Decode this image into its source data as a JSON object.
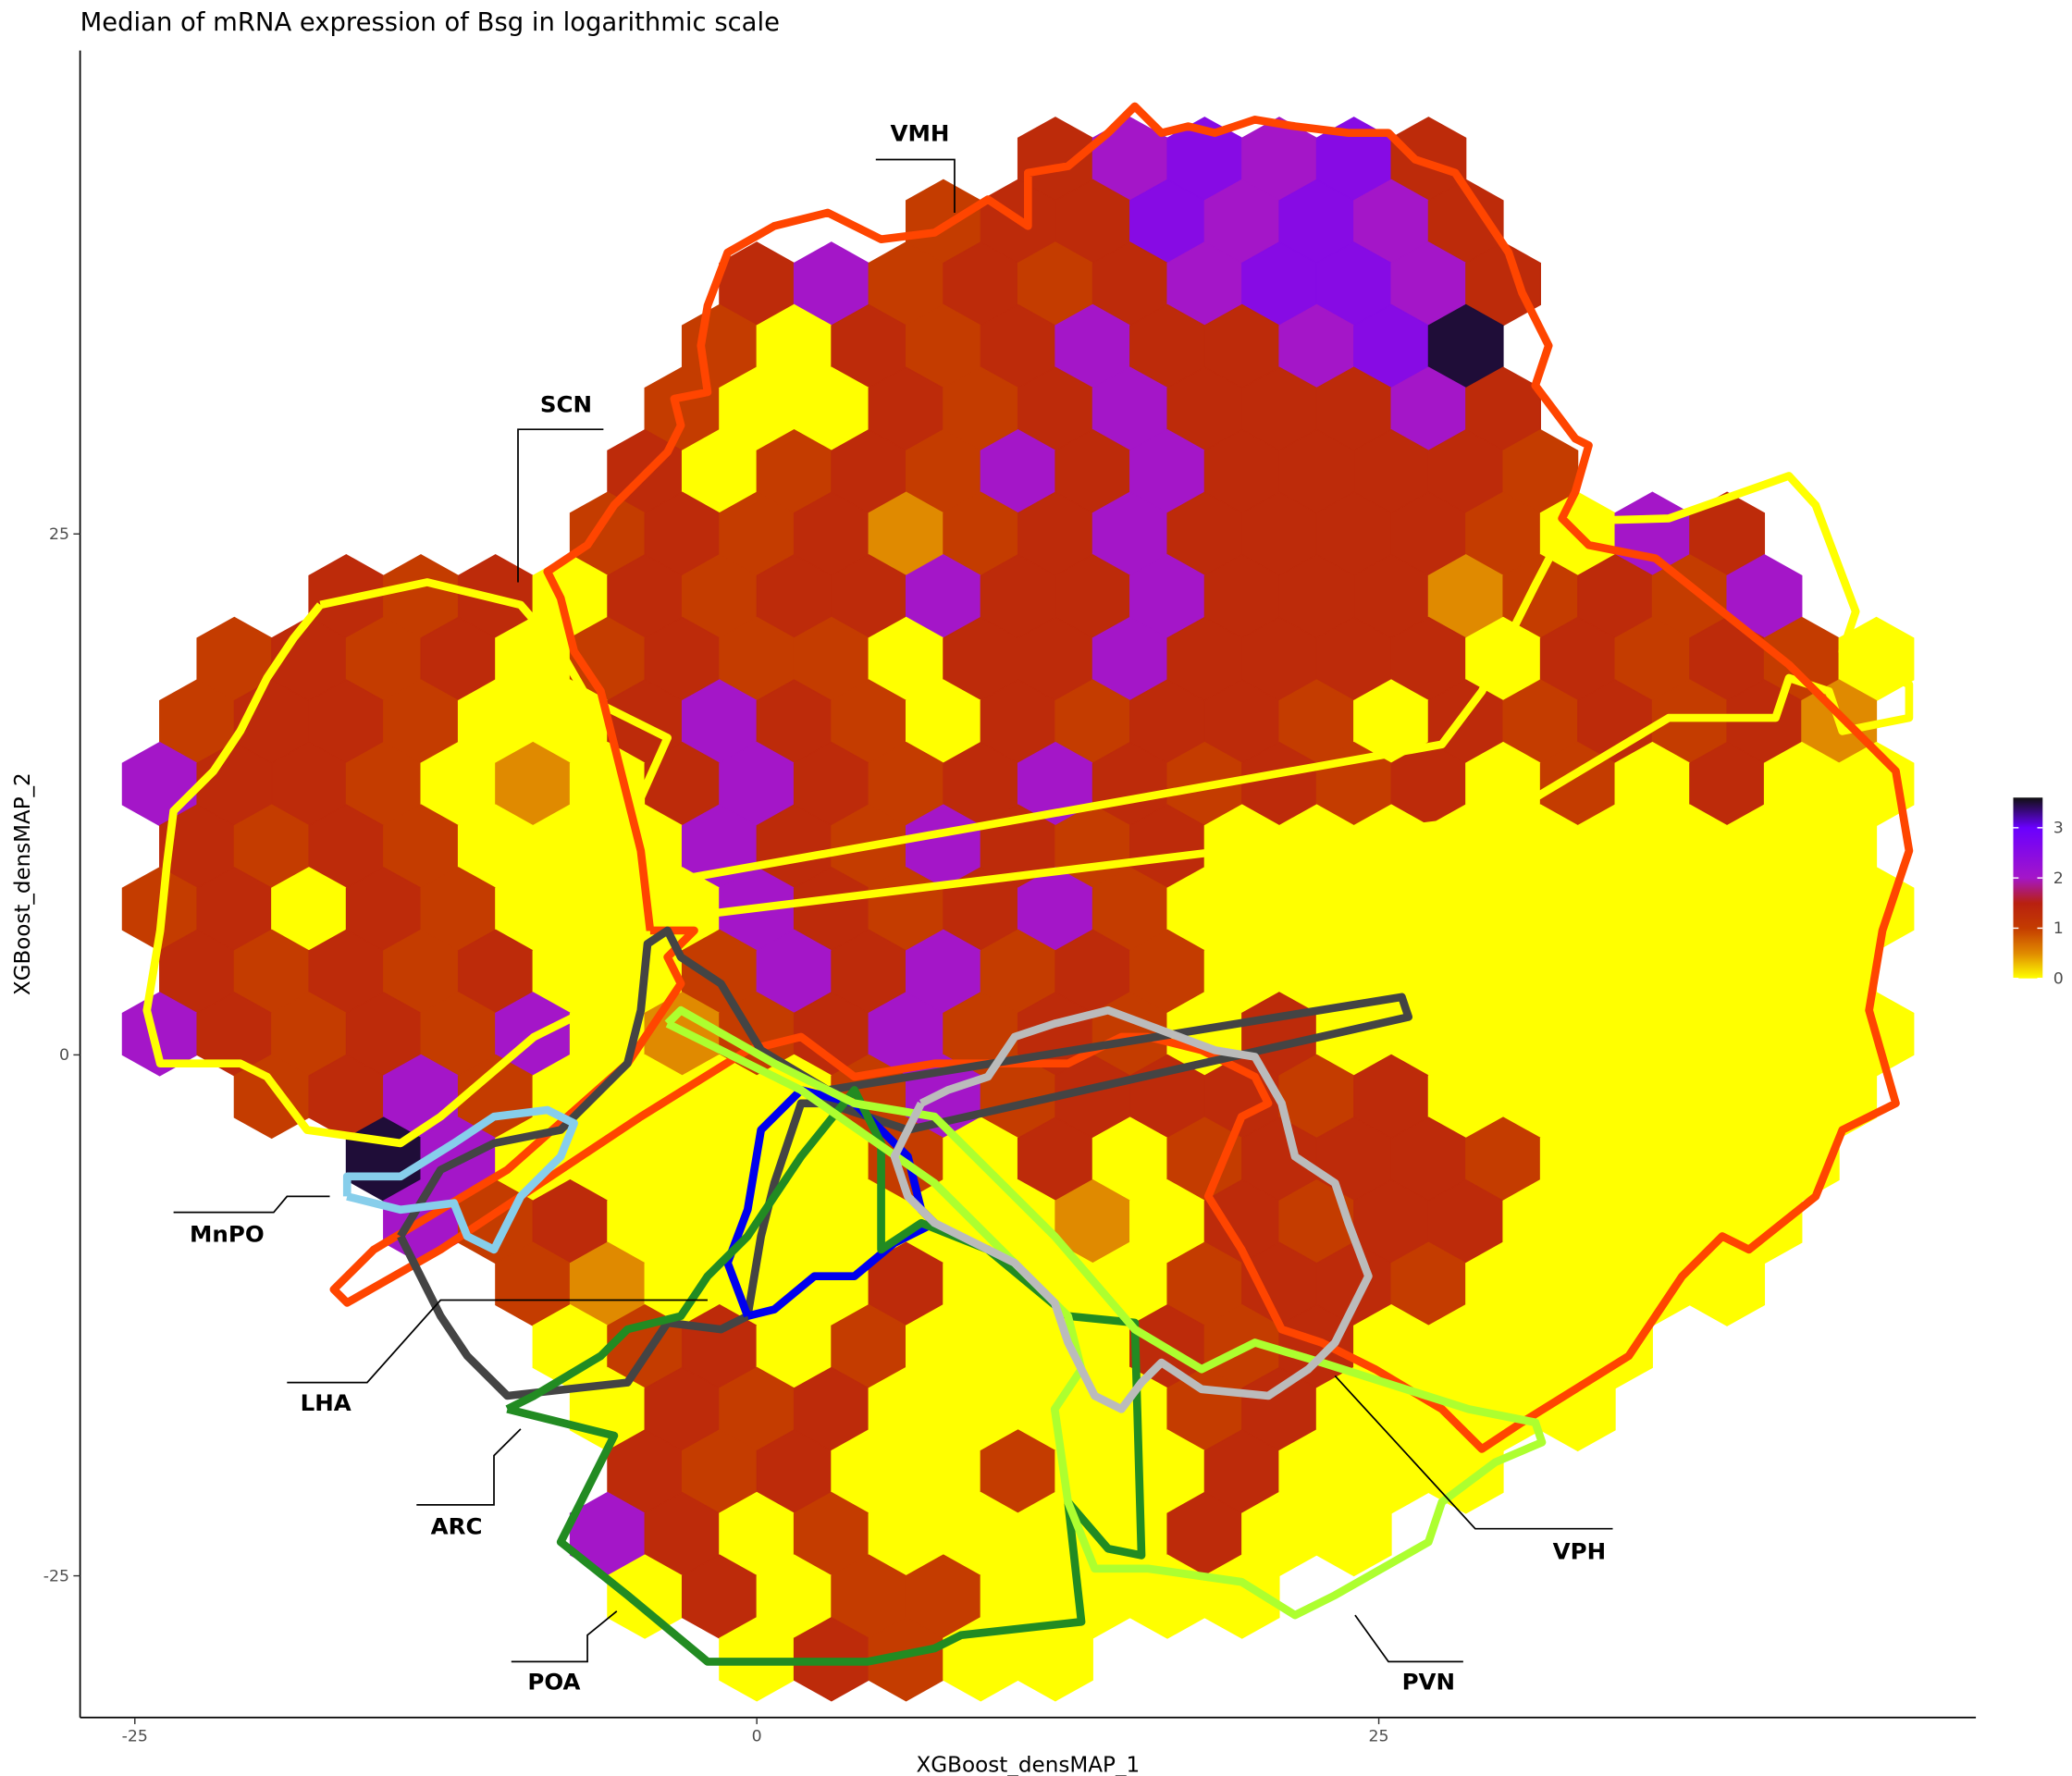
{
  "chart_data": {
    "type": "hexbin",
    "title": "Median of mRNA expression of Bsg in logarithmic scale",
    "xlabel": "XGBoost_densMAP_1",
    "ylabel": "XGBoost_densMAP_2",
    "xlim": [
      -27.2,
      49
    ],
    "ylim": [
      -31.8,
      48.2
    ],
    "xticks": [
      -25,
      0,
      25
    ],
    "yticks": [
      -25,
      0,
      25
    ],
    "colorbar": {
      "lim": [
        0,
        3.6
      ],
      "ticks": [
        0,
        1,
        2,
        3
      ],
      "stops": [
        [
          0,
          "#ffff00"
        ],
        [
          0.5,
          "#e08a00"
        ],
        [
          1,
          "#c43c00"
        ],
        [
          1.5,
          "#b82010"
        ],
        [
          2,
          "#a416c8"
        ],
        [
          3,
          "#6a00ff"
        ],
        [
          3.6,
          "#101010"
        ]
      ]
    },
    "annotations": [
      "VMH",
      "SCN",
      "MnPO",
      "LHA",
      "ARC",
      "POA",
      "VPH",
      "PVN"
    ],
    "rows": [
      {
        "y": 43,
        "x": [
          12,
          15,
          18,
          21,
          24,
          27
        ],
        "values": [
          1.3,
          2,
          2.5,
          2,
          2.5,
          1.3
        ]
      },
      {
        "y": 40,
        "x": [
          7.5,
          10.5,
          13.5,
          16.5,
          19.5,
          22.5,
          25.5,
          28.5
        ],
        "values": [
          1,
          1.3,
          1.3,
          2.5,
          2,
          2.5,
          2,
          1.3
        ]
      },
      {
        "y": 37,
        "x": [
          0,
          3,
          6,
          9,
          12,
          15,
          18,
          21,
          24,
          27,
          30
        ],
        "values": [
          1.3,
          2,
          1,
          1.3,
          1,
          1.3,
          2,
          2.5,
          2.5,
          2,
          1.3
        ]
      },
      {
        "y": 34,
        "x": [
          -1.5,
          1.5,
          4.5,
          7.5,
          10.5,
          13.5,
          16.5,
          19.5,
          22.5,
          25.5,
          28.5
        ],
        "values": [
          1,
          0,
          1.3,
          1,
          1.3,
          2,
          1.3,
          1.3,
          2,
          2.5,
          3.5
        ]
      },
      {
        "y": 31,
        "x": [
          -3,
          0,
          3,
          6,
          9,
          12,
          15,
          18,
          21,
          24,
          27,
          30
        ],
        "values": [
          1,
          0,
          0,
          1.3,
          1,
          1.3,
          2,
          1.3,
          1.3,
          1.3,
          2,
          1.3
        ]
      },
      {
        "y": 28,
        "x": [
          -4.5,
          -1.5,
          1.5,
          4.5,
          7.5,
          10.5,
          13.5,
          16.5,
          19.5,
          22.5,
          25.5,
          28.5,
          31.5
        ],
        "values": [
          1.3,
          0,
          1,
          1.3,
          1,
          2,
          1.3,
          2,
          1.3,
          1.3,
          1.3,
          1.3,
          1
        ]
      },
      {
        "y": 25,
        "x": [
          -6,
          -3,
          0,
          3,
          6,
          9,
          12,
          15,
          18,
          21,
          24,
          27,
          30,
          33,
          36,
          39
        ],
        "values": [
          1,
          1.3,
          1,
          1.3,
          0.5,
          1,
          1.3,
          2,
          1.3,
          1.3,
          1.3,
          1.3,
          1,
          0,
          2,
          1.3
        ]
      },
      {
        "y": 22,
        "x": [
          -16.5,
          -13.5,
          -10.5,
          -7.5,
          -4.5,
          -1.5,
          1.5,
          4.5,
          7.5,
          10.5,
          13.5,
          16.5,
          19.5,
          22.5,
          25.5,
          28.5,
          31.5,
          34.5,
          37.5,
          40.5
        ],
        "values": [
          1.3,
          1,
          1.3,
          0,
          1.3,
          1,
          1.3,
          1.3,
          2,
          1.3,
          1.3,
          2,
          1.3,
          1.3,
          1.3,
          0.5,
          1,
          1.3,
          1,
          2
        ]
      },
      {
        "y": 19,
        "x": [
          -21,
          -18,
          -15,
          -12,
          -9,
          -6,
          -3,
          0,
          3,
          6,
          9,
          12,
          15,
          18,
          21,
          24,
          27,
          30,
          33,
          36,
          39,
          42,
          45
        ],
        "values": [
          1,
          1.3,
          1,
          1.3,
          0,
          1,
          1.3,
          1,
          1,
          0,
          1.3,
          1.3,
          2,
          1.3,
          1.3,
          1.3,
          1.3,
          0,
          1.3,
          1,
          1.3,
          1,
          0
        ]
      },
      {
        "y": 16,
        "x": [
          -22.5,
          -19.5,
          -16.5,
          -13.5,
          -10.5,
          -7.5,
          -4.5,
          -1.5,
          1.5,
          4.5,
          7.5,
          10.5,
          13.5,
          16.5,
          19.5,
          22.5,
          25.5,
          28.5,
          31.5,
          34.5,
          37.5,
          40.5,
          43.5
        ],
        "values": [
          1,
          1.3,
          1.3,
          1,
          0,
          0,
          1.3,
          2,
          1.3,
          1,
          0,
          1.3,
          1,
          1.3,
          1.3,
          1,
          0,
          1.3,
          1,
          1.3,
          1,
          1.3,
          0.5
        ]
      },
      {
        "y": 13,
        "x": [
          -24,
          -21,
          -18,
          -15,
          -12,
          -9,
          -6,
          -3,
          0,
          3,
          6,
          9,
          12,
          15,
          18,
          21,
          24,
          27,
          30,
          33,
          36,
          39,
          42,
          45
        ],
        "values": [
          2,
          1.3,
          1.3,
          1,
          0,
          0.5,
          0,
          1.3,
          2,
          1.3,
          1,
          1.3,
          2,
          1.3,
          1,
          1.3,
          1,
          1.3,
          0,
          1,
          0,
          1.3,
          0,
          0
        ]
      },
      {
        "y": 10,
        "x": [
          -22.5,
          -19.5,
          -16.5,
          -13.5,
          -10.5,
          -7.5,
          -4.5,
          -1.5,
          1.5,
          4.5,
          7.5,
          10.5,
          13.5,
          16.5,
          19.5,
          22.5,
          25.5,
          28.5,
          31.5,
          34.5,
          37.5,
          40.5,
          43.5
        ],
        "values": [
          1.3,
          1,
          1.3,
          1,
          0,
          0,
          0,
          2,
          1.3,
          1,
          2,
          1.3,
          1,
          1.3,
          0,
          0,
          0,
          0,
          0,
          0,
          0,
          0,
          0
        ]
      },
      {
        "y": 7,
        "x": [
          -24,
          -21,
          -18,
          -15,
          -12,
          -9,
          -6,
          -3,
          0,
          3,
          6,
          9,
          12,
          15,
          18,
          21,
          24,
          27,
          30,
          33,
          36,
          39,
          42,
          45
        ],
        "values": [
          1,
          1.3,
          0,
          1.3,
          1,
          0,
          0,
          0,
          2,
          1.3,
          1,
          1.3,
          2,
          1,
          0,
          0,
          0,
          0,
          0,
          0,
          0,
          0,
          0,
          0
        ]
      },
      {
        "y": 4,
        "x": [
          -22.5,
          -19.5,
          -16.5,
          -13.5,
          -10.5,
          -7.5,
          -4.5,
          -1.5,
          1.5,
          4.5,
          7.5,
          10.5,
          13.5,
          16.5,
          19.5,
          22.5,
          25.5,
          28.5,
          31.5,
          34.5,
          37.5,
          40.5,
          43.5
        ],
        "values": [
          1.3,
          1,
          1.3,
          1,
          1.3,
          0,
          0,
          1,
          2,
          1.3,
          2,
          1,
          1.3,
          1,
          0,
          0,
          0,
          0,
          0,
          0,
          0,
          0,
          0
        ]
      },
      {
        "y": 1,
        "x": [
          -24,
          -21,
          -18,
          -15,
          -12,
          -9,
          -6,
          -3,
          0,
          3,
          6,
          9,
          12,
          15,
          18,
          21,
          24,
          27,
          30,
          33,
          36,
          39,
          42,
          45
        ],
        "values": [
          2,
          1.3,
          1,
          1.3,
          1,
          2,
          0,
          0.5,
          1,
          1.3,
          2,
          1,
          1.3,
          1,
          0,
          1.3,
          0,
          0,
          0,
          0,
          0,
          0,
          0,
          0
        ]
      },
      {
        "y": -2,
        "x": [
          -19.5,
          -16.5,
          -13.5,
          -10.5,
          -7.5,
          -4.5,
          -1.5,
          1.5,
          4.5,
          7.5,
          10.5,
          13.5,
          16.5,
          19.5,
          22.5,
          25.5,
          28.5,
          31.5,
          34.5,
          37.5,
          40.5,
          43.5
        ],
        "values": [
          1,
          1.3,
          2,
          1,
          0,
          0,
          0,
          0,
          1,
          2,
          1,
          1.3,
          1.3,
          1.3,
          1,
          1.3,
          0,
          0,
          0,
          0,
          0,
          0
        ]
      },
      {
        "y": -5,
        "x": [
          -15,
          -12,
          -9,
          -6,
          -3,
          0,
          3,
          6,
          9,
          12,
          15,
          18,
          21,
          24,
          27,
          30,
          33,
          36,
          39,
          42
        ],
        "values": [
          3.5,
          2,
          0,
          0,
          0,
          0,
          0,
          1,
          0,
          1.3,
          0,
          1,
          1.3,
          1.3,
          1.3,
          1,
          0,
          0,
          0,
          0
        ]
      },
      {
        "y": -8,
        "x": [
          -13.5,
          -10.5,
          -7.5,
          -4.5,
          -1.5,
          1.5,
          4.5,
          7.5,
          10.5,
          13.5,
          16.5,
          19.5,
          22.5,
          25.5,
          28.5,
          31.5,
          34.5,
          37.5,
          40.5
        ],
        "values": [
          2,
          1,
          1.3,
          0,
          0,
          0,
          0,
          0,
          0,
          0.5,
          0,
          1.3,
          1,
          1.3,
          1.3,
          0,
          0,
          0,
          0
        ]
      },
      {
        "y": -11,
        "x": [
          -9,
          -6,
          -3,
          0,
          3,
          6,
          9,
          12,
          15,
          18,
          21,
          24,
          27,
          30,
          33,
          36,
          39
        ],
        "values": [
          1,
          0.5,
          0,
          0,
          0,
          1.3,
          0,
          0,
          0,
          1,
          1.3,
          1.3,
          1,
          0,
          0,
          0,
          0
        ]
      },
      {
        "y": -14,
        "x": [
          -7.5,
          -4.5,
          -1.5,
          1.5,
          4.5,
          7.5,
          10.5,
          13.5,
          16.5,
          19.5,
          22.5,
          25.5,
          28.5,
          31.5,
          34.5
        ],
        "values": [
          0,
          1,
          1.3,
          0,
          1,
          0,
          0,
          0,
          1.3,
          1,
          1.3,
          0,
          0,
          0,
          0
        ]
      },
      {
        "y": -17,
        "x": [
          -6,
          -3,
          0,
          3,
          6,
          9,
          12,
          15,
          18,
          21,
          24,
          27,
          30,
          33
        ],
        "values": [
          0,
          1.3,
          1,
          1.3,
          0,
          0,
          0,
          0,
          1,
          1.3,
          0,
          0,
          0,
          0
        ]
      },
      {
        "y": -20,
        "x": [
          -4.5,
          -1.5,
          1.5,
          4.5,
          7.5,
          10.5,
          13.5,
          16.5,
          19.5,
          22.5,
          25.5,
          28.5
        ],
        "values": [
          1.3,
          1,
          1.3,
          0,
          0,
          1,
          0,
          0,
          1.3,
          0,
          0,
          0
        ]
      },
      {
        "y": -23,
        "x": [
          -6,
          -3,
          0,
          3,
          6,
          9,
          12,
          15,
          18,
          21,
          24
        ],
        "values": [
          2,
          1.3,
          0,
          1,
          0,
          0,
          0,
          0,
          1.3,
          0,
          0
        ]
      },
      {
        "y": -26,
        "x": [
          -4.5,
          -1.5,
          1.5,
          4.5,
          7.5,
          10.5,
          13.5,
          16.5,
          19.5
        ],
        "values": [
          0,
          1.3,
          0,
          1,
          1,
          0,
          0,
          0,
          0
        ]
      },
      {
        "y": -29,
        "x": [
          0,
          3,
          6,
          9,
          12
        ],
        "values": [
          0,
          1.3,
          1,
          0,
          0
        ]
      }
    ]
  }
}
